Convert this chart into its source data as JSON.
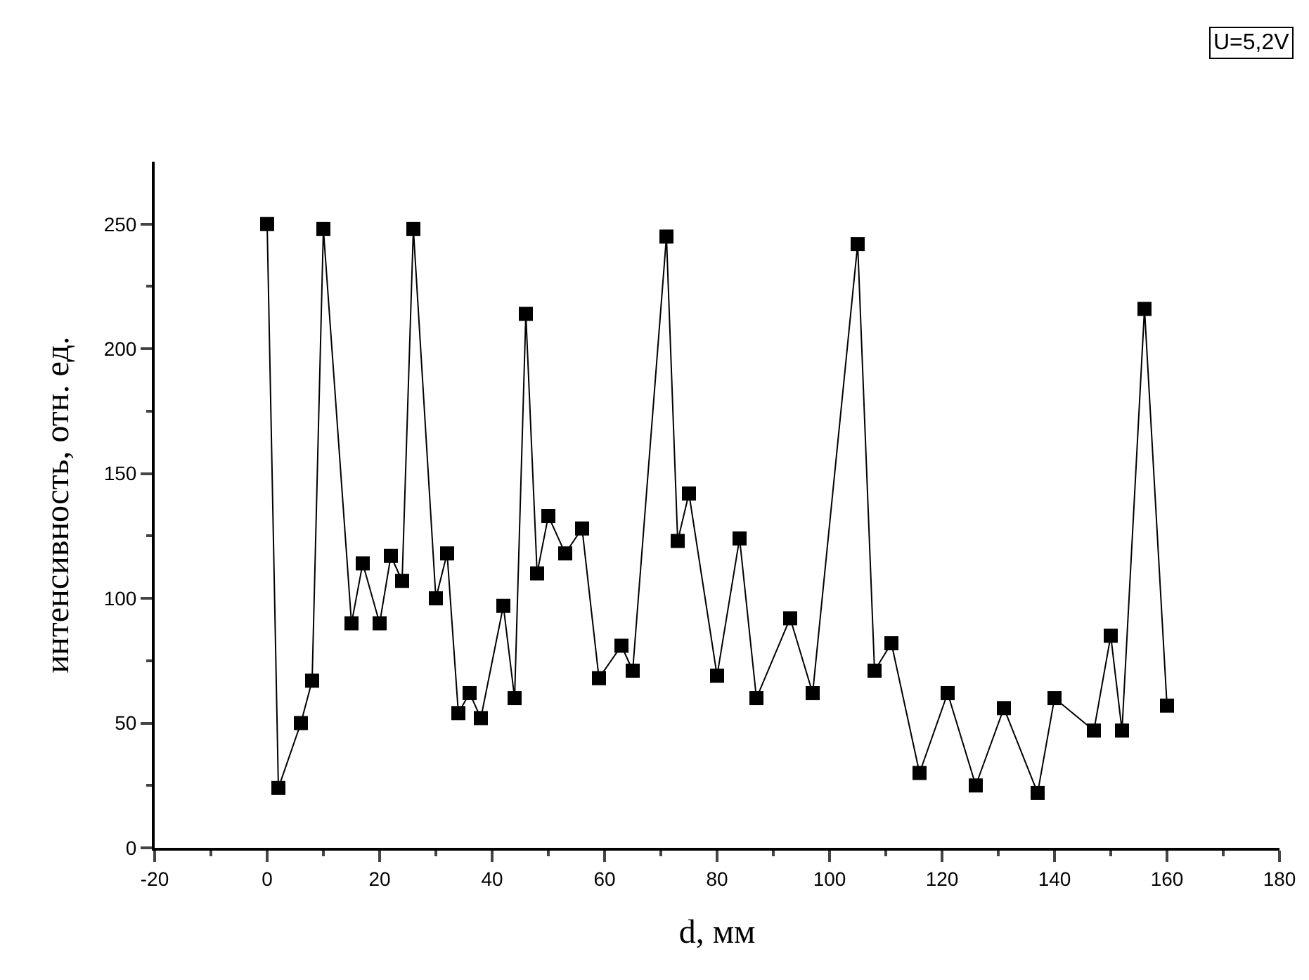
{
  "chart_data": {
    "type": "line",
    "xlabel": "d, мм",
    "ylabel": "интенсивность, отн. ед.",
    "annotations": [
      "U=5,2V"
    ],
    "marker": "square",
    "line_style": "solid",
    "grid": false,
    "legend": false,
    "xlim": [
      -20,
      180
    ],
    "ylim": [
      0,
      275
    ],
    "xticks": [
      -20,
      {
        "value": -10,
        "label": null
      },
      0,
      {
        "value": 10,
        "label": null
      },
      20,
      {
        "value": 30,
        "label": null
      },
      40,
      {
        "value": 50,
        "label": null
      },
      60,
      {
        "value": 70,
        "label": null
      },
      80,
      {
        "value": 90,
        "label": null
      },
      100,
      {
        "value": 110,
        "label": null
      },
      120,
      {
        "value": 130,
        "label": null
      },
      140,
      {
        "value": 150,
        "label": null
      },
      160,
      {
        "value": 170,
        "label": null
      },
      180
    ],
    "yticks": [
      0,
      {
        "value": 25,
        "label": null
      },
      50,
      {
        "value": 75,
        "label": null
      },
      100,
      {
        "value": 125,
        "label": null
      },
      150,
      {
        "value": 175,
        "label": null
      },
      200,
      {
        "value": 225,
        "label": null
      },
      250
    ],
    "x": [
      0,
      2,
      6,
      8,
      10,
      15,
      17,
      20,
      22,
      24,
      26,
      30,
      32,
      34,
      36,
      38,
      42,
      44,
      46,
      48,
      50,
      53,
      56,
      59,
      63,
      65,
      71,
      73,
      75,
      80,
      84,
      87,
      93,
      97,
      105,
      108,
      111,
      116,
      121,
      126,
      131,
      137,
      140,
      147,
      150,
      152,
      156,
      160
    ],
    "series": [
      {
        "color": "#000000",
        "values": [
          250,
          24,
          50,
          67,
          248,
          90,
          114,
          90,
          117,
          107,
          248,
          100,
          118,
          54,
          62,
          52,
          97,
          60,
          214,
          110,
          133,
          118,
          128,
          68,
          81,
          71,
          245,
          123,
          142,
          69,
          124,
          60,
          92,
          62,
          242,
          71,
          82,
          30,
          62,
          25,
          56,
          22,
          60,
          47,
          85,
          47,
          216,
          57
        ]
      }
    ]
  }
}
